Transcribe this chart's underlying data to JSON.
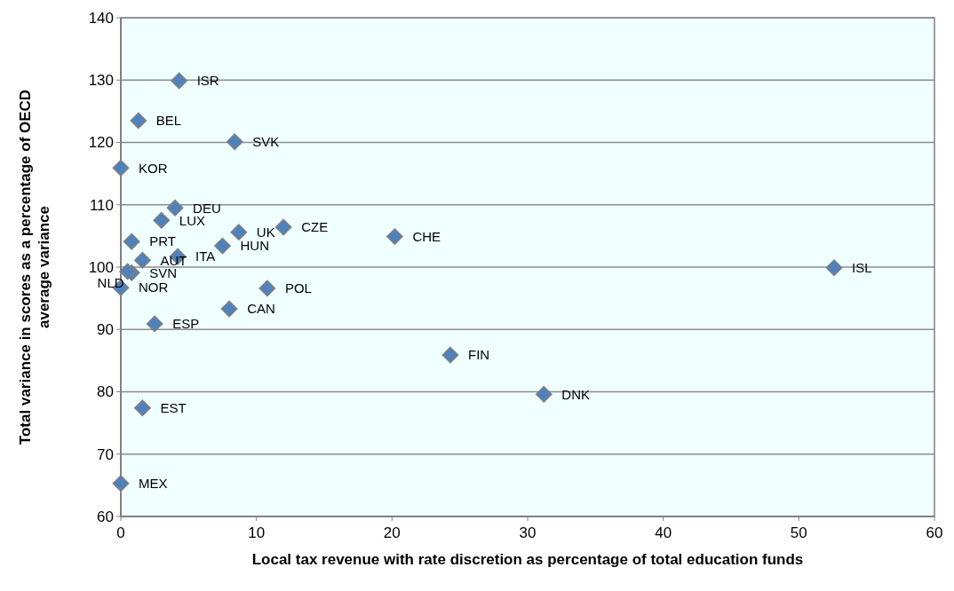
{
  "chart_data": {
    "type": "scatter",
    "xlabel": "Local tax revenue with rate discretion as percentage of total education funds",
    "ylabel": "Total variance in scores as a percentage of OECD average variance",
    "xlim": [
      0,
      60
    ],
    "xticks": [
      0,
      10,
      20,
      30,
      40,
      50,
      60
    ],
    "ylim": [
      60,
      140
    ],
    "yticks": [
      60,
      70,
      80,
      90,
      100,
      110,
      120,
      130,
      140
    ],
    "grid": "y",
    "marker": "diamond",
    "series": [
      {
        "color": "#4f81bd",
        "x": [
          4.3,
          1.3,
          8.4,
          0,
          4.0,
          3.0,
          0.8,
          8.7,
          12.0,
          7.5,
          4.2,
          1.6,
          0.8,
          0.5,
          0,
          10.8,
          8.0,
          2.5,
          1.6,
          0,
          20.2,
          52.6,
          24.3,
          31.2
        ],
        "values": [
          129.9,
          123.5,
          120.1,
          115.9,
          109.5,
          107.5,
          104.1,
          105.6,
          106.4,
          103.4,
          101.7,
          101.1,
          99.1,
          99.3,
          96.7,
          96.6,
          93.3,
          90.9,
          77.4,
          65.3,
          104.9,
          99.9,
          85.9,
          79.6
        ]
      }
    ],
    "annotations": [
      {
        "text": "ISR",
        "x": 4.3,
        "y": 129.9
      },
      {
        "text": "BEL",
        "x": 1.3,
        "y": 123.5
      },
      {
        "text": "SVK",
        "x": 8.4,
        "y": 120.1
      },
      {
        "text": "KOR",
        "x": 0,
        "y": 115.9
      },
      {
        "text": "DEU",
        "x": 4.0,
        "y": 109.5
      },
      {
        "text": "LUX",
        "x": 3.0,
        "y": 107.5
      },
      {
        "text": "PRT",
        "x": 0.8,
        "y": 104.1
      },
      {
        "text": "UK",
        "x": 8.7,
        "y": 105.6
      },
      {
        "text": "CZE",
        "x": 12.0,
        "y": 106.4
      },
      {
        "text": "HUN",
        "x": 7.5,
        "y": 103.4
      },
      {
        "text": "ITA",
        "x": 4.2,
        "y": 101.7
      },
      {
        "text": "AUT",
        "x": 1.6,
        "y": 101.1
      },
      {
        "text": "SVN",
        "x": 0.8,
        "y": 99.1
      },
      {
        "text": "NLD",
        "x": 0.5,
        "y": 99.3
      },
      {
        "text": "NOR",
        "x": 0,
        "y": 96.7
      },
      {
        "text": "POL",
        "x": 10.8,
        "y": 96.6
      },
      {
        "text": "CAN",
        "x": 8.0,
        "y": 93.3
      },
      {
        "text": "ESP",
        "x": 2.5,
        "y": 90.9
      },
      {
        "text": "EST",
        "x": 1.6,
        "y": 77.4
      },
      {
        "text": "MEX",
        "x": 0,
        "y": 65.3
      },
      {
        "text": "CHE",
        "x": 20.2,
        "y": 104.9
      },
      {
        "text": "ISL",
        "x": 52.6,
        "y": 99.9
      },
      {
        "text": "FIN",
        "x": 24.3,
        "y": 85.9
      },
      {
        "text": "DNK",
        "x": 31.2,
        "y": 79.6
      }
    ]
  }
}
